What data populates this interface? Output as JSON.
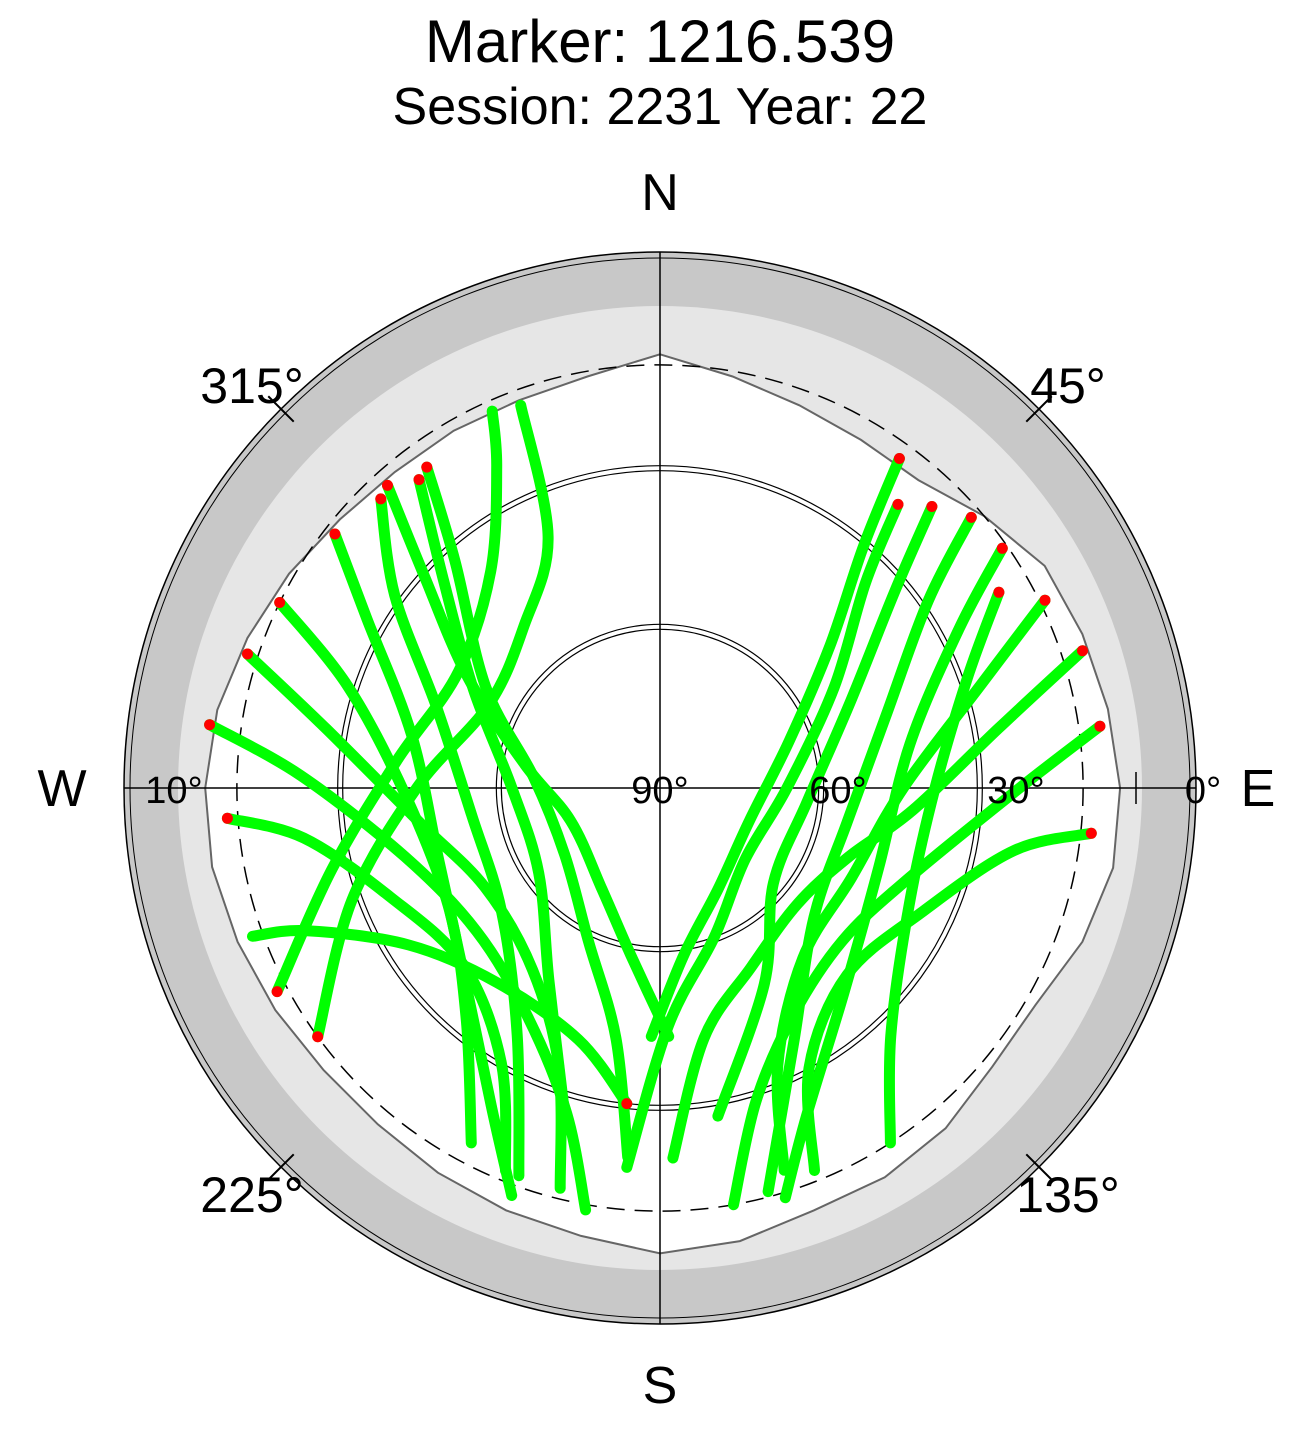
{
  "chart_data": {
    "type": "polar-skyplot",
    "title": "Marker: 1216.539",
    "subtitle": "Session: 2231 Year: 22",
    "compass": {
      "north": "N",
      "east": "E",
      "south": "S",
      "west": "W"
    },
    "azimuth_labels": [
      {
        "az": 45,
        "text": "45°"
      },
      {
        "az": 135,
        "text": "135°"
      },
      {
        "az": 225,
        "text": "225°"
      },
      {
        "az": 315,
        "text": "315°"
      }
    ],
    "elevation_labels": [
      {
        "el": 90,
        "text": "90°"
      },
      {
        "el": 60,
        "text": "60°"
      },
      {
        "el": 30,
        "text": "30°"
      },
      {
        "el": 0,
        "text": "0°"
      },
      {
        "el": 10,
        "text": "10°",
        "side": "west"
      }
    ],
    "elevation_circles": [
      30,
      60
    ],
    "elevation_cutoff": 10,
    "colors": {
      "track": "#00ff00",
      "track_end": "#ff0000",
      "outer_ring": "#c8c8c8",
      "horizon_fill": "#e6e6e6",
      "grid": "#000000"
    },
    "horizon_mask": [
      [
        0,
        8
      ],
      [
        10,
        11
      ],
      [
        20,
        13
      ],
      [
        30,
        14
      ],
      [
        40,
        14
      ],
      [
        50,
        10
      ],
      [
        60,
        6
      ],
      [
        70,
        5
      ],
      [
        80,
        4
      ],
      [
        90,
        3
      ],
      [
        100,
        3
      ],
      [
        110,
        5
      ],
      [
        120,
        8
      ],
      [
        130,
        8
      ],
      [
        140,
        6
      ],
      [
        150,
        5
      ],
      [
        160,
        5
      ],
      [
        170,
        3
      ],
      [
        180,
        2
      ],
      [
        190,
        4
      ],
      [
        200,
        5
      ],
      [
        210,
        6
      ],
      [
        220,
        7
      ],
      [
        230,
        7
      ],
      [
        240,
        6
      ],
      [
        250,
        5
      ],
      [
        260,
        4
      ],
      [
        270,
        4
      ],
      [
        280,
        5
      ],
      [
        290,
        7
      ],
      [
        300,
        9
      ],
      [
        310,
        11
      ],
      [
        320,
        12
      ],
      [
        330,
        12
      ],
      [
        340,
        12
      ],
      [
        350,
        11
      ],
      [
        360,
        8
      ]
    ],
    "series": [
      {
        "points": [
          [
            36,
            13
          ],
          [
            40,
            30
          ],
          [
            50,
            48
          ],
          [
            70,
            64
          ],
          [
            110,
            72
          ],
          [
            150,
            68
          ],
          [
            172,
            58
          ],
          [
            182,
            43
          ]
        ]
      },
      {
        "points": [
          [
            40,
            20
          ],
          [
            45,
            35
          ],
          [
            60,
            52
          ],
          [
            90,
            66
          ],
          [
            130,
            69
          ],
          [
            160,
            60
          ],
          [
            178,
            45
          ],
          [
            185,
            18
          ]
        ]
      },
      {
        "points": [
          [
            44,
            16
          ],
          [
            50,
            32
          ],
          [
            65,
            50
          ],
          [
            95,
            62
          ],
          [
            130,
            62
          ],
          [
            152,
            48
          ],
          [
            170,
            27
          ]
        ]
      },
      {
        "points": [
          [
            49,
            12
          ],
          [
            55,
            28
          ],
          [
            72,
            45
          ],
          [
            100,
            54
          ],
          [
            130,
            52
          ],
          [
            152,
            36
          ],
          [
            165,
            11
          ]
        ]
      },
      {
        "points": [
          [
            55,
            11
          ],
          [
            62,
            26
          ],
          [
            80,
            42
          ],
          [
            110,
            46
          ],
          [
            138,
            38
          ],
          [
            156,
            22
          ],
          [
            163,
            9
          ]
        ]
      },
      {
        "points": [
          [
            60,
            16
          ],
          [
            70,
            28
          ],
          [
            90,
            38
          ],
          [
            115,
            38
          ],
          [
            137,
            26
          ],
          [
            147,
            10
          ]
        ]
      },
      {
        "points": [
          [
            72,
            6
          ],
          [
            80,
            25
          ],
          [
            95,
            42
          ],
          [
            110,
            52
          ],
          [
            130,
            56
          ],
          [
            153,
            52
          ],
          [
            170,
            42
          ],
          [
            178,
            20
          ]
        ]
      },
      {
        "points": [
          [
            82,
            6
          ],
          [
            90,
            22
          ],
          [
            110,
            40
          ],
          [
            130,
            45
          ],
          [
            150,
            40
          ],
          [
            163,
            28
          ],
          [
            170,
            10
          ]
        ]
      },
      {
        "points": [
          [
            96,
            8
          ],
          [
            100,
            22
          ],
          [
            115,
            35
          ],
          [
            135,
            40
          ],
          [
            152,
            30
          ],
          [
            158,
            12
          ]
        ]
      },
      {
        "points": [
          [
            64,
            9
          ],
          [
            72,
            26
          ],
          [
            90,
            44
          ],
          [
            115,
            50
          ],
          [
            140,
            48
          ],
          [
            157,
            33
          ],
          [
            162,
            14
          ]
        ]
      },
      {
        "points": [
          [
            318,
            13
          ],
          [
            312,
            30
          ],
          [
            300,
            48
          ],
          [
            280,
            64
          ],
          [
            250,
            72
          ],
          [
            210,
            68
          ],
          [
            190,
            58
          ],
          [
            178,
            43
          ]
        ]
      },
      {
        "points": [
          [
            324,
            15
          ],
          [
            318,
            32
          ],
          [
            300,
            52
          ],
          [
            275,
            66
          ],
          [
            235,
            68
          ],
          [
            205,
            58
          ],
          [
            190,
            42
          ],
          [
            185,
            20
          ]
        ]
      },
      {
        "points": [
          [
            322,
            16
          ],
          [
            314,
            33
          ],
          [
            298,
            50
          ],
          [
            270,
            62
          ],
          [
            235,
            62
          ],
          [
            210,
            48
          ],
          [
            196,
            25
          ]
        ]
      },
      {
        "points": [
          [
            316,
            14
          ],
          [
            306,
            28
          ],
          [
            290,
            45
          ],
          [
            262,
            54
          ],
          [
            232,
            52
          ],
          [
            210,
            36
          ],
          [
            200,
            12
          ]
        ]
      },
      {
        "points": [
          [
            308,
            12
          ],
          [
            300,
            26
          ],
          [
            282,
            42
          ],
          [
            252,
            46
          ],
          [
            225,
            38
          ],
          [
            208,
            22
          ],
          [
            200,
            8
          ]
        ]
      },
      {
        "points": [
          [
            296,
            10
          ],
          [
            288,
            28
          ],
          [
            268,
            42
          ],
          [
            240,
            44
          ],
          [
            220,
            33
          ],
          [
            208,
            14
          ]
        ]
      },
      {
        "points": [
          [
            288,
            8
          ],
          [
            280,
            26
          ],
          [
            262,
            44
          ],
          [
            240,
            52
          ],
          [
            215,
            48
          ],
          [
            200,
            34
          ],
          [
            194,
            12
          ]
        ]
      },
      {
        "points": [
          [
            278,
            4
          ],
          [
            272,
            22
          ],
          [
            255,
            40
          ],
          [
            232,
            46
          ],
          [
            210,
            40
          ],
          [
            196,
            26
          ],
          [
            190,
            9
          ]
        ]
      },
      {
        "points": [
          [
            266,
            8
          ],
          [
            262,
            22
          ],
          [
            248,
            35
          ],
          [
            228,
            40
          ],
          [
            210,
            30
          ],
          [
            202,
            12
          ]
        ]
      },
      {
        "points": [
          [
            234,
            10
          ],
          [
            250,
            28
          ],
          [
            270,
            44
          ],
          [
            296,
            54
          ],
          [
            320,
            50
          ],
          [
            336,
            38
          ],
          [
            340,
            13
          ]
        ]
      },
      {
        "points": [
          [
            242,
            8
          ],
          [
            256,
            26
          ],
          [
            276,
            40
          ],
          [
            300,
            46
          ],
          [
            322,
            38
          ],
          [
            333,
            22
          ],
          [
            336,
            12
          ]
        ]
      },
      {
        "points": [
          [
            186,
            30
          ],
          [
            198,
            40
          ],
          [
            220,
            42
          ],
          [
            238,
            34
          ],
          [
            248,
            18
          ],
          [
            250,
            8
          ]
        ]
      }
    ]
  }
}
